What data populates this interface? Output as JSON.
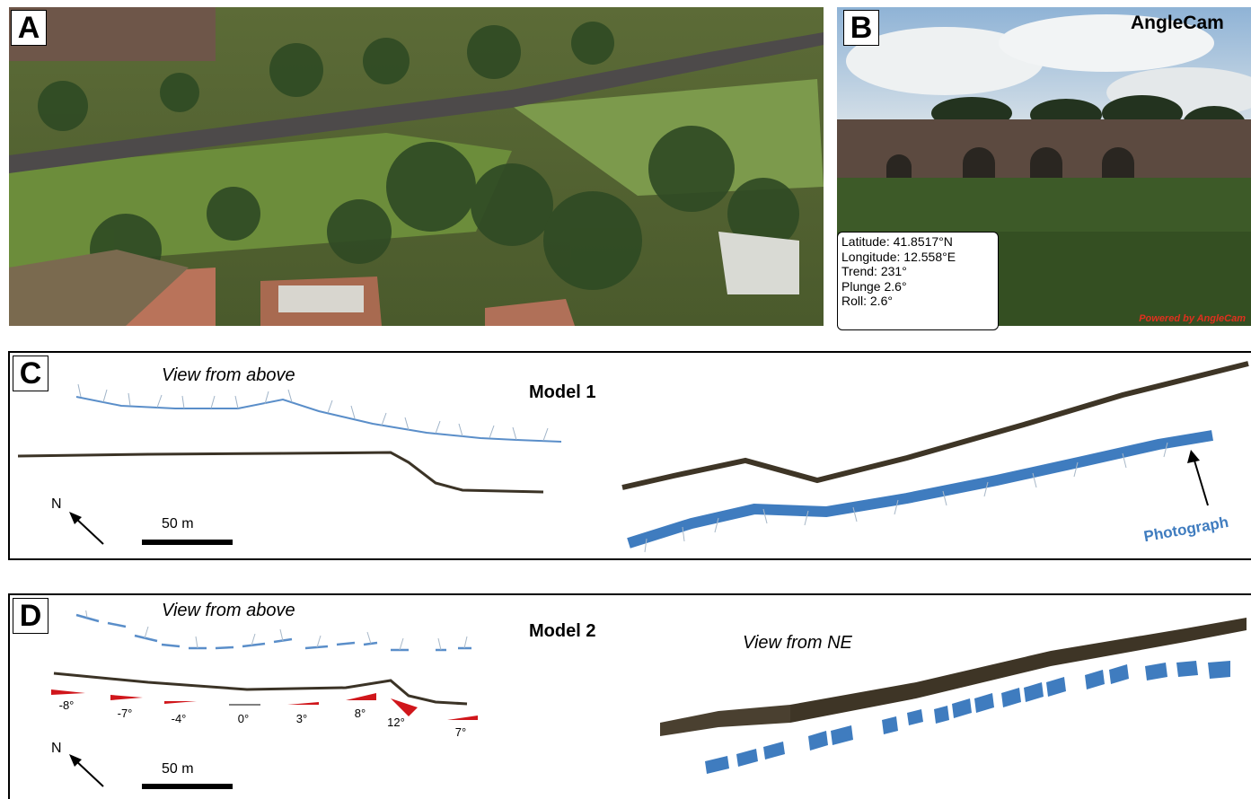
{
  "panel_a": {
    "letter": "A"
  },
  "panel_b": {
    "letter": "B",
    "app_name": "AngleCam",
    "info": {
      "latitude": "Latitude: 41.8517°N",
      "longitude": "Longitude: 12.558°E",
      "trend": "Trend: 231°",
      "plunge": "Plunge 2.6°",
      "roll": "Roll: 2.6°"
    },
    "watermark": "Powered by AngleCam"
  },
  "panel_c": {
    "letter": "C",
    "view_label": "View from above",
    "model_label": "Model 1",
    "north": "N",
    "scale": "50 m",
    "photo_label": "Photograph"
  },
  "panel_d": {
    "letter": "D",
    "view_label": "View from above",
    "model_label": "Model 2",
    "side_view_label": "View from NE",
    "north": "N",
    "scale": "50 m",
    "angles": [
      "-8°",
      "-7°",
      "-4°",
      "0°",
      "3°",
      "8°",
      "12°",
      "7°"
    ]
  },
  "colors": {
    "camera_blue": "#3f7cbf",
    "wedge_red": "#d0161b",
    "wall_dark": "#4a4030"
  }
}
